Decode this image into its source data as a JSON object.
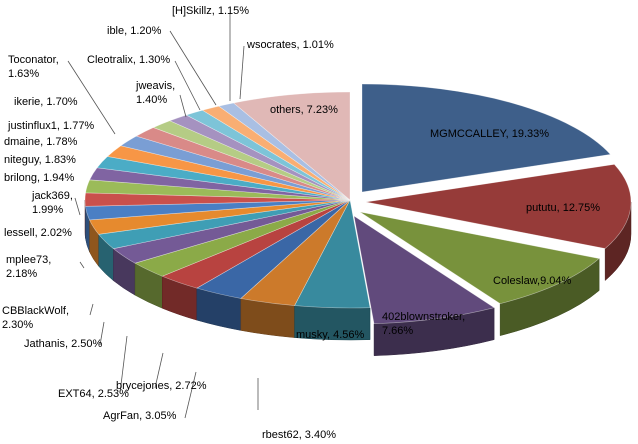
{
  "chart_data": {
    "type": "pie",
    "style": "3d-exploded-first-slices",
    "slices": [
      {
        "name": "MGMCCALLEY",
        "value": 19.33,
        "label": "MGMCCALLEY,  19.33%",
        "color": "#3E5F8A"
      },
      {
        "name": "pututu",
        "value": 12.75,
        "label": "pututu, 12.75%",
        "color": "#963B39"
      },
      {
        "name": "Coleslaw",
        "value": 9.04,
        "label": "Coleslaw,9.04%",
        "color": "#78923C"
      },
      {
        "name": "402blownstroker",
        "value": 7.66,
        "label": "402blownstroker,\n7.66%",
        "color": "#614A7C"
      },
      {
        "name": "musky",
        "value": 4.56,
        "label": "musky, 4.56%",
        "color": "#388A9E"
      },
      {
        "name": "rbest62",
        "value": 3.4,
        "label": "rbest62, 3.40%",
        "color": "#CC7A2B"
      },
      {
        "name": "AgrFan",
        "value": 3.05,
        "label": "AgrFan, 3.05%",
        "color": "#3A67A6"
      },
      {
        "name": "brycejones",
        "value": 2.72,
        "label": "brycejones, 2.72%",
        "color": "#B84340"
      },
      {
        "name": "EXT64",
        "value": 2.53,
        "label": "EXT64,  2.53%",
        "color": "#8BAA48"
      },
      {
        "name": "Jathanis",
        "value": 2.5,
        "label": "Jathanis, 2.50%",
        "color": "#745A96"
      },
      {
        "name": "CBBlackWolf",
        "value": 2.3,
        "label": "CBBlackWolf,\n2.30%",
        "color": "#3F9EB5"
      },
      {
        "name": "mplee73",
        "value": 2.18,
        "label": "mplee73,\n2.18%",
        "color": "#E68A2E"
      },
      {
        "name": "lessell",
        "value": 2.02,
        "label": "lessell, 2.02%",
        "color": "#4A7FC4"
      },
      {
        "name": "jack369",
        "value": 1.99,
        "label": "jack369,\n1.99%",
        "color": "#C9504C"
      },
      {
        "name": "brilong",
        "value": 1.94,
        "label": "brilong, 1.94%",
        "color": "#9BBB59"
      },
      {
        "name": "niteguy",
        "value": 1.83,
        "label": "niteguy, 1.83%",
        "color": "#8064A2"
      },
      {
        "name": "dmaine",
        "value": 1.78,
        "label": "dmaine, 1.78%",
        "color": "#4BACC6"
      },
      {
        "name": "justinflux1",
        "value": 1.77,
        "label": "justinflux1, 1.77%",
        "color": "#F79646"
      },
      {
        "name": "ikerie",
        "value": 1.7,
        "label": "ikerie, 1.70%",
        "color": "#7A9ED4"
      },
      {
        "name": "Toconator",
        "value": 1.63,
        "label": "Toconator,\n1.63%",
        "color": "#D98A88"
      },
      {
        "name": "jweavis",
        "value": 1.4,
        "label": "jweavis,\n1.40%",
        "color": "#B5CC85"
      },
      {
        "name": "Cleotralix",
        "value": 1.3,
        "label": "Cleotralix, 1.30%",
        "color": "#A592C0"
      },
      {
        "name": "ible",
        "value": 1.2,
        "label": "ible, 1.20%",
        "color": "#7DC4D8"
      },
      {
        "name": "[H]Skillz",
        "value": 1.15,
        "label": "[H]Skillz, 1.15%",
        "color": "#F9AE73"
      },
      {
        "name": "wsocrates",
        "value": 1.01,
        "label": "wsocrates, 1.01%",
        "color": "#A9BFE3"
      },
      {
        "name": "others",
        "value": 7.23,
        "label": "others, 7.23%",
        "color": "#E0B8B6"
      }
    ]
  }
}
